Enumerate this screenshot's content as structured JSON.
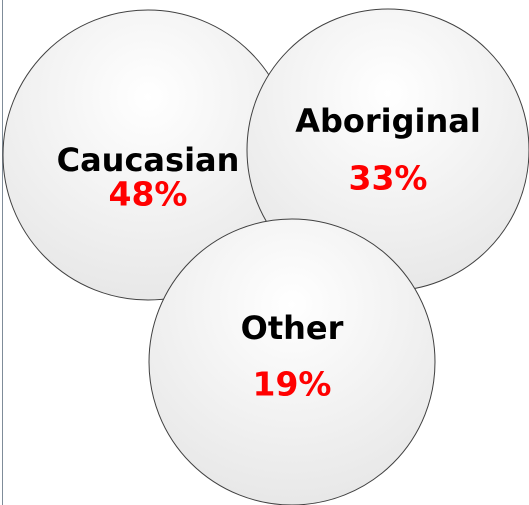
{
  "nodes": [
    {
      "label": "Caucasian",
      "value": "48%"
    },
    {
      "label": "Aboriginal",
      "value": "33%"
    },
    {
      "label": "Other",
      "value": "19%"
    }
  ]
}
